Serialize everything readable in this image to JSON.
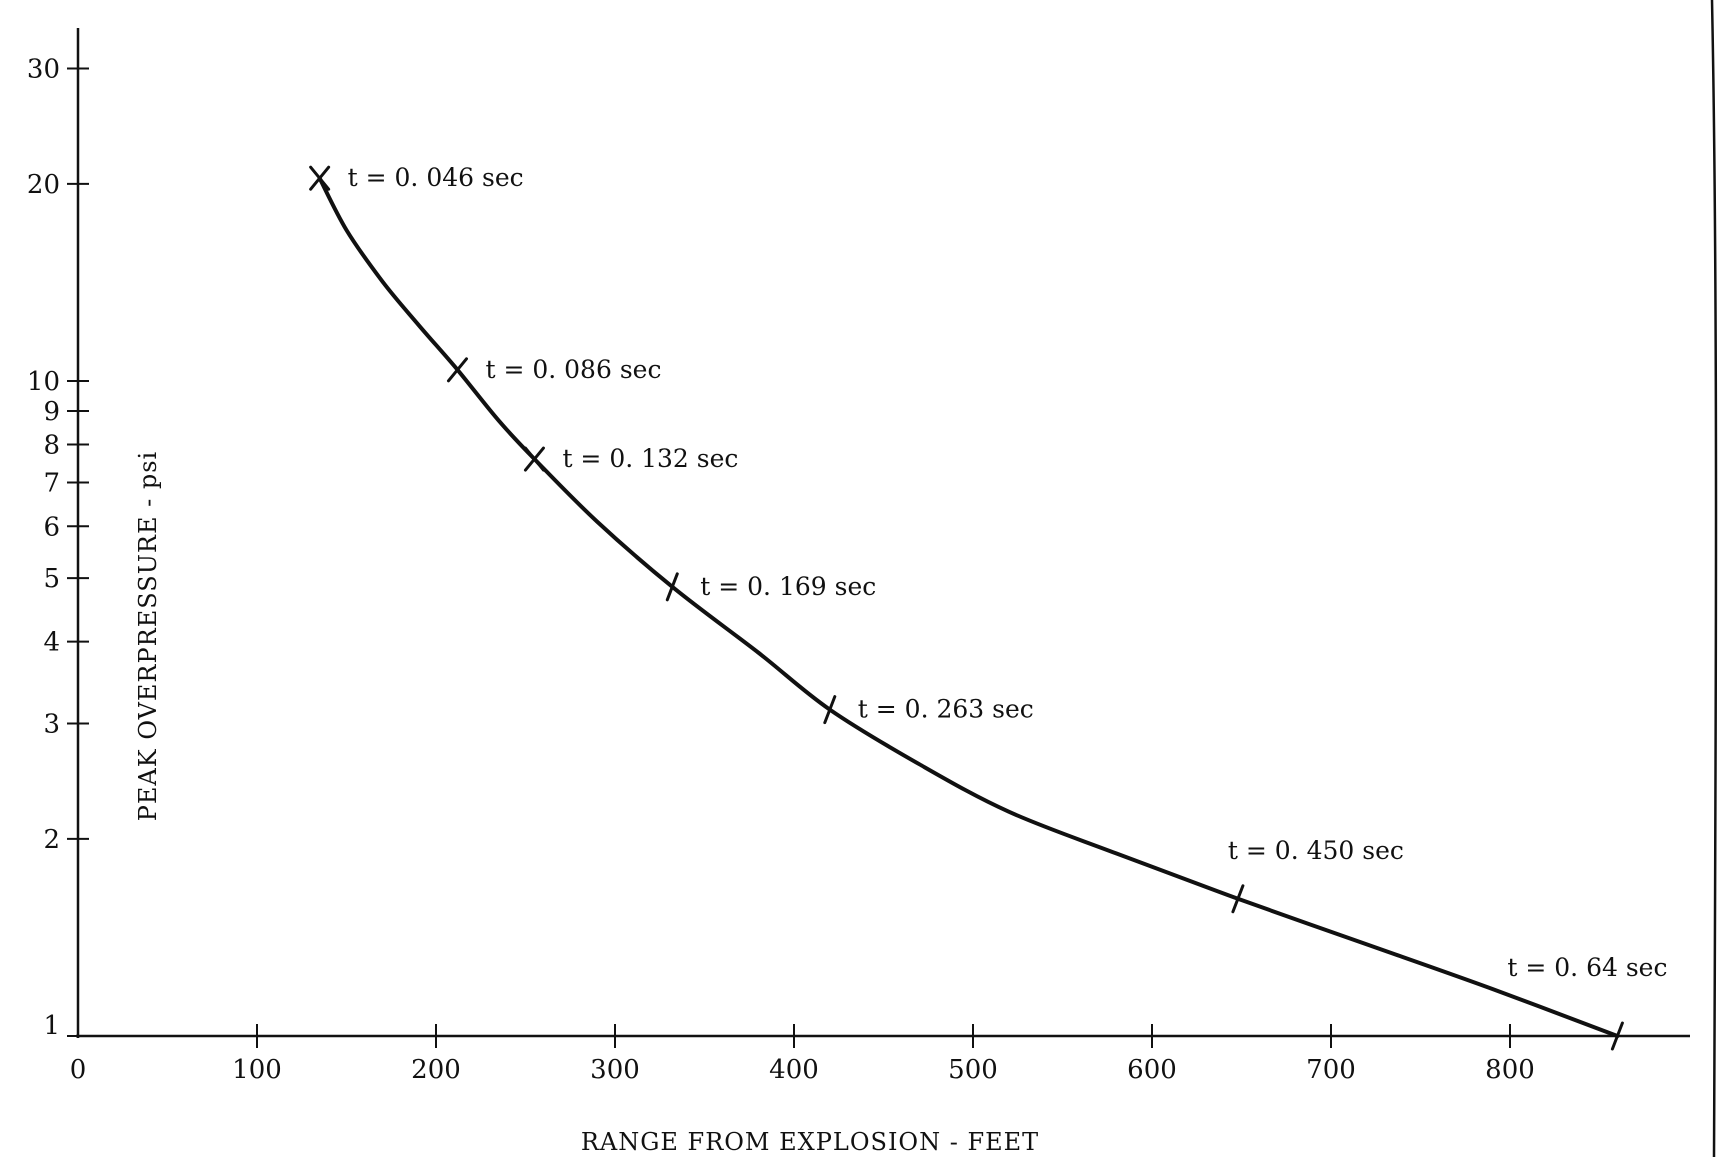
{
  "chart_data": {
    "type": "line",
    "title": "",
    "xlabel": "RANGE FROM EXPLOSION - FEET",
    "ylabel": "PEAK OVERPRESSURE - psi",
    "xlim": [
      0,
      880
    ],
    "ylim": [
      1,
      30
    ],
    "yscale": "log",
    "grid": false,
    "x_ticks": [
      "0",
      "100",
      "200",
      "300",
      "400",
      "500",
      "600",
      "700",
      "800"
    ],
    "y_ticks": [
      "1",
      "2",
      "3",
      "4",
      "5",
      "6",
      "7",
      "8",
      "9",
      "10",
      "20",
      "30"
    ],
    "series": [
      {
        "x": [
          135,
          150,
          170,
          190,
          212,
          235,
          255,
          290,
          332,
          380,
          420,
          470,
          520,
          580,
          648,
          720,
          790,
          860
        ],
        "y": [
          20.4,
          17.0,
          14.2,
          12.2,
          10.4,
          8.7,
          7.6,
          6.1,
          4.85,
          3.85,
          3.15,
          2.6,
          2.2,
          1.9,
          1.62,
          1.38,
          1.18,
          1.0
        ]
      }
    ],
    "annotations": [
      {
        "x": 135,
        "y": 20.4,
        "text": "t = 0. 046 sec"
      },
      {
        "x": 212,
        "y": 10.4,
        "text": "t = 0. 086 sec"
      },
      {
        "x": 255,
        "y": 7.6,
        "text": "t = 0. 132 sec"
      },
      {
        "x": 332,
        "y": 4.85,
        "text": "t = 0. 169 sec"
      },
      {
        "x": 420,
        "y": 3.15,
        "text": "t = 0. 263 sec"
      },
      {
        "x": 648,
        "y": 1.62,
        "text": "t = 0. 450 sec"
      },
      {
        "x": 860,
        "y": 1.0,
        "text": "t = 0. 64 sec"
      }
    ]
  }
}
